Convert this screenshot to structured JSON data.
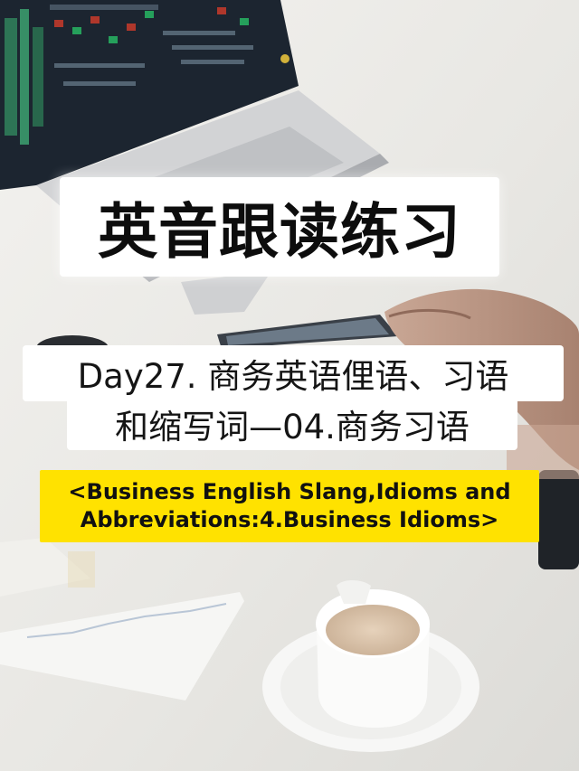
{
  "title": "英音跟读练习",
  "subtitle_line1": "Day27. 商务英语俚语、习语",
  "subtitle_line2": "和缩写词—04.商务习语",
  "banner_line1": "<Business English Slang,Idioms and",
  "banner_line2": "Abbreviations:4.Business Idioms>",
  "colors": {
    "banner_yellow": "#ffe200",
    "caption_white": "#ffffff",
    "text_dark": "#111111"
  }
}
